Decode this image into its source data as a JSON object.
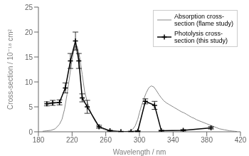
{
  "chart_data": {
    "type": "line",
    "xlabel": "Wavelength / nm",
    "ylabel": "Cross-section / 10⁻¹⁸ cm²",
    "xlim": [
      180,
      420
    ],
    "ylim": [
      0,
      25
    ],
    "xticks": [
      180,
      220,
      260,
      300,
      340,
      380,
      420
    ],
    "yticks": [
      0,
      5,
      10,
      15,
      20,
      25
    ],
    "grid": false,
    "legend": "upper right",
    "series": [
      {
        "name": "Absorption cross-\nsection (flame study)",
        "color": "#888888",
        "marker": "none",
        "line_style": "solid",
        "x": [
          185,
          190,
          195,
          200,
          205,
          208,
          211,
          214,
          217,
          220,
          223,
          226,
          229,
          232,
          235,
          238,
          241,
          244,
          247,
          250,
          253,
          256,
          259,
          262,
          265,
          268,
          271,
          274,
          277,
          280,
          283,
          286,
          289,
          292,
          295,
          298,
          300,
          302,
          305,
          308,
          311,
          314,
          317,
          320,
          323,
          326,
          329,
          332,
          335,
          338,
          341,
          344,
          347,
          350,
          353,
          356,
          359,
          362,
          365,
          368,
          371,
          374,
          377,
          380,
          383,
          386,
          389,
          392,
          395,
          398,
          401,
          404,
          407,
          410,
          413,
          416
        ],
        "values": [
          0.1,
          0.2,
          0.3,
          0.6,
          1.5,
          2.5,
          4.5,
          7.5,
          11.0,
          14.5,
          17.0,
          17.2,
          15.0,
          11.5,
          8.0,
          6.0,
          4.5,
          3.2,
          2.2,
          1.5,
          1.0,
          0.6,
          0.4,
          0.25,
          0.15,
          0.1,
          0.05,
          0.05,
          0.05,
          0.05,
          0.05,
          0.1,
          0.2,
          0.5,
          1.2,
          2.5,
          3.8,
          5.0,
          6.5,
          7.8,
          8.8,
          9.2,
          9.0,
          8.3,
          7.5,
          6.8,
          6.2,
          5.8,
          5.5,
          5.2,
          4.9,
          4.6,
          4.3,
          4.0,
          3.8,
          3.5,
          3.2,
          2.9,
          2.7,
          2.4,
          2.2,
          2.0,
          1.8,
          1.6,
          1.4,
          1.2,
          1.0,
          0.8,
          0.6,
          0.5,
          0.4,
          0.3,
          0.2,
          0.15,
          0.1,
          0.05
        ]
      },
      {
        "name": "Photolysis cross-\nsection (this study)",
        "color": "#000000",
        "marker": "plus",
        "line_style": "solid",
        "x": [
          190,
          197,
          205,
          212,
          218,
          224,
          228,
          232,
          238,
          252,
          265,
          278,
          290,
          298,
          307,
          318,
          326,
          352,
          385
        ],
        "values": [
          5.6,
          5.8,
          5.9,
          8.8,
          14.2,
          18.2,
          14.2,
          6.8,
          5.0,
          1.0,
          0.2,
          0.05,
          0.05,
          0.1,
          6.1,
          5.3,
          0.2,
          0.3,
          0.8
        ],
        "error": [
          0.4,
          0.5,
          0.5,
          1.0,
          1.5,
          1.8,
          1.5,
          0.8,
          1.3,
          0.3,
          0.1,
          0.05,
          0.05,
          0.1,
          0.5,
          0.8,
          0.1,
          0.15,
          0.25
        ]
      }
    ]
  }
}
